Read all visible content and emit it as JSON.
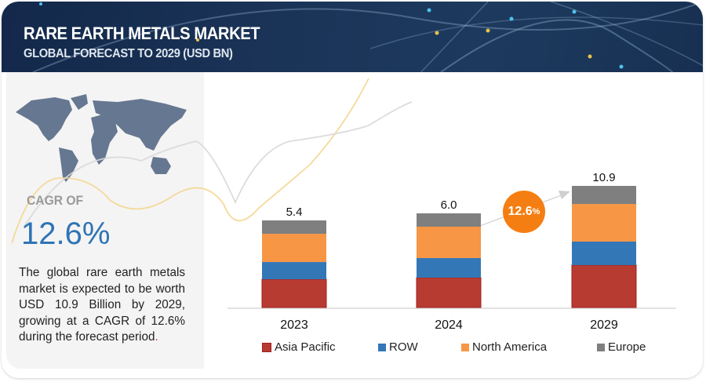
{
  "header": {
    "title": "RARE EARTH METALS MARKET",
    "subtitle": "GLOBAL FORECAST TO 2029 (USD BN)"
  },
  "left_panel": {
    "map_icon": "world-map-icon",
    "cagr_label": "CAGR OF",
    "cagr_value": "12.6%",
    "description": "The global rare earth metals market is expected to be worth USD 10.9 Billion by 2029, growing at a CAGR of 12.6% during the forecast period",
    "description_end": "."
  },
  "cagr_bubble": {
    "value": "12.6",
    "unit": "%",
    "color": "#f57e12"
  },
  "chart_data": {
    "type": "bar",
    "stacked": true,
    "title": "RARE EARTH METALS MARKET - GLOBAL FORECAST TO 2029 (USD BN)",
    "xlabel": "",
    "ylabel": "USD BN",
    "categories": [
      "2023",
      "2024",
      "2029"
    ],
    "totals": [
      5.4,
      6.0,
      10.9
    ],
    "total_labels": [
      "5.4",
      "6.0",
      "10.9"
    ],
    "series": [
      {
        "name": "Asia Pacific",
        "color": "#b83b31",
        "values": [
          1.75,
          1.9,
          3.8
        ]
      },
      {
        "name": "ROW",
        "color": "#3477b6",
        "values": [
          1.07,
          1.25,
          2.11
        ]
      },
      {
        "name": "North America",
        "color": "#f79645",
        "values": [
          1.75,
          2.0,
          3.37
        ]
      },
      {
        "name": "Europe",
        "color": "#7f7f7f",
        "values": [
          0.83,
          0.85,
          1.62
        ]
      }
    ],
    "legend_position": "bottom",
    "grid": false,
    "annotation": "12.6% CAGR"
  }
}
